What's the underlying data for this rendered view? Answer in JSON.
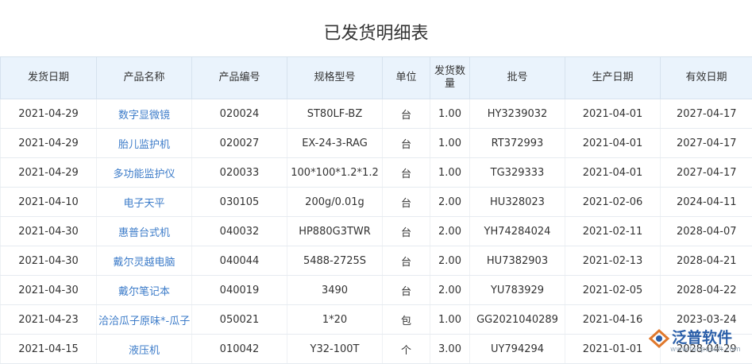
{
  "header": {
    "title": "已发货明细表"
  },
  "table": {
    "columns": [
      "发货日期",
      "产品名称",
      "产品编号",
      "规格型号",
      "单位",
      "发货数量",
      "批号",
      "生产日期",
      "有效日期"
    ],
    "rows": [
      [
        "2021-04-29",
        "数字显微镜",
        "020024",
        "ST80LF-BZ",
        "台",
        "1.00",
        "HY3239032",
        "2021-04-01",
        "2027-04-17"
      ],
      [
        "2021-04-29",
        "胎儿监护机",
        "020027",
        "EX-24-3-RAG",
        "台",
        "1.00",
        "RT372993",
        "2021-04-01",
        "2027-04-17"
      ],
      [
        "2021-04-29",
        "多功能监护仪",
        "020033",
        "100*100*1.2*1.2",
        "台",
        "1.00",
        "TG329333",
        "2021-04-01",
        "2027-04-17"
      ],
      [
        "2021-04-10",
        "电子天平",
        "030105",
        "200g/0.01g",
        "台",
        "2.00",
        "HU328023",
        "2021-02-06",
        "2024-04-11"
      ],
      [
        "2021-04-30",
        "惠普台式机",
        "040032",
        "HP880G3TWR",
        "台",
        "2.00",
        "YH74284024",
        "2021-02-11",
        "2028-04-07"
      ],
      [
        "2021-04-30",
        "戴尔灵越电脑",
        "040044",
        "5488-2725S",
        "台",
        "2.00",
        "HU7382903",
        "2021-02-13",
        "2028-04-21"
      ],
      [
        "2021-04-30",
        "戴尔笔记本",
        "040019",
        "3490",
        "台",
        "2.00",
        "YU783929",
        "2021-02-05",
        "2028-04-22"
      ],
      [
        "2021-04-23",
        "洽洽瓜子原味*-瓜子",
        "050021",
        "1*20",
        "包",
        "1.00",
        "GG2021040289",
        "2021-04-16",
        "2023-03-24"
      ],
      [
        "2021-04-15",
        "液压机",
        "010042",
        "Y32-100T",
        "个",
        "3.00",
        "UY794294",
        "2021-01-01",
        "2028-04-29"
      ]
    ]
  },
  "watermark": {
    "brand": "泛普软件",
    "url": "www.fanpusoft.com"
  }
}
